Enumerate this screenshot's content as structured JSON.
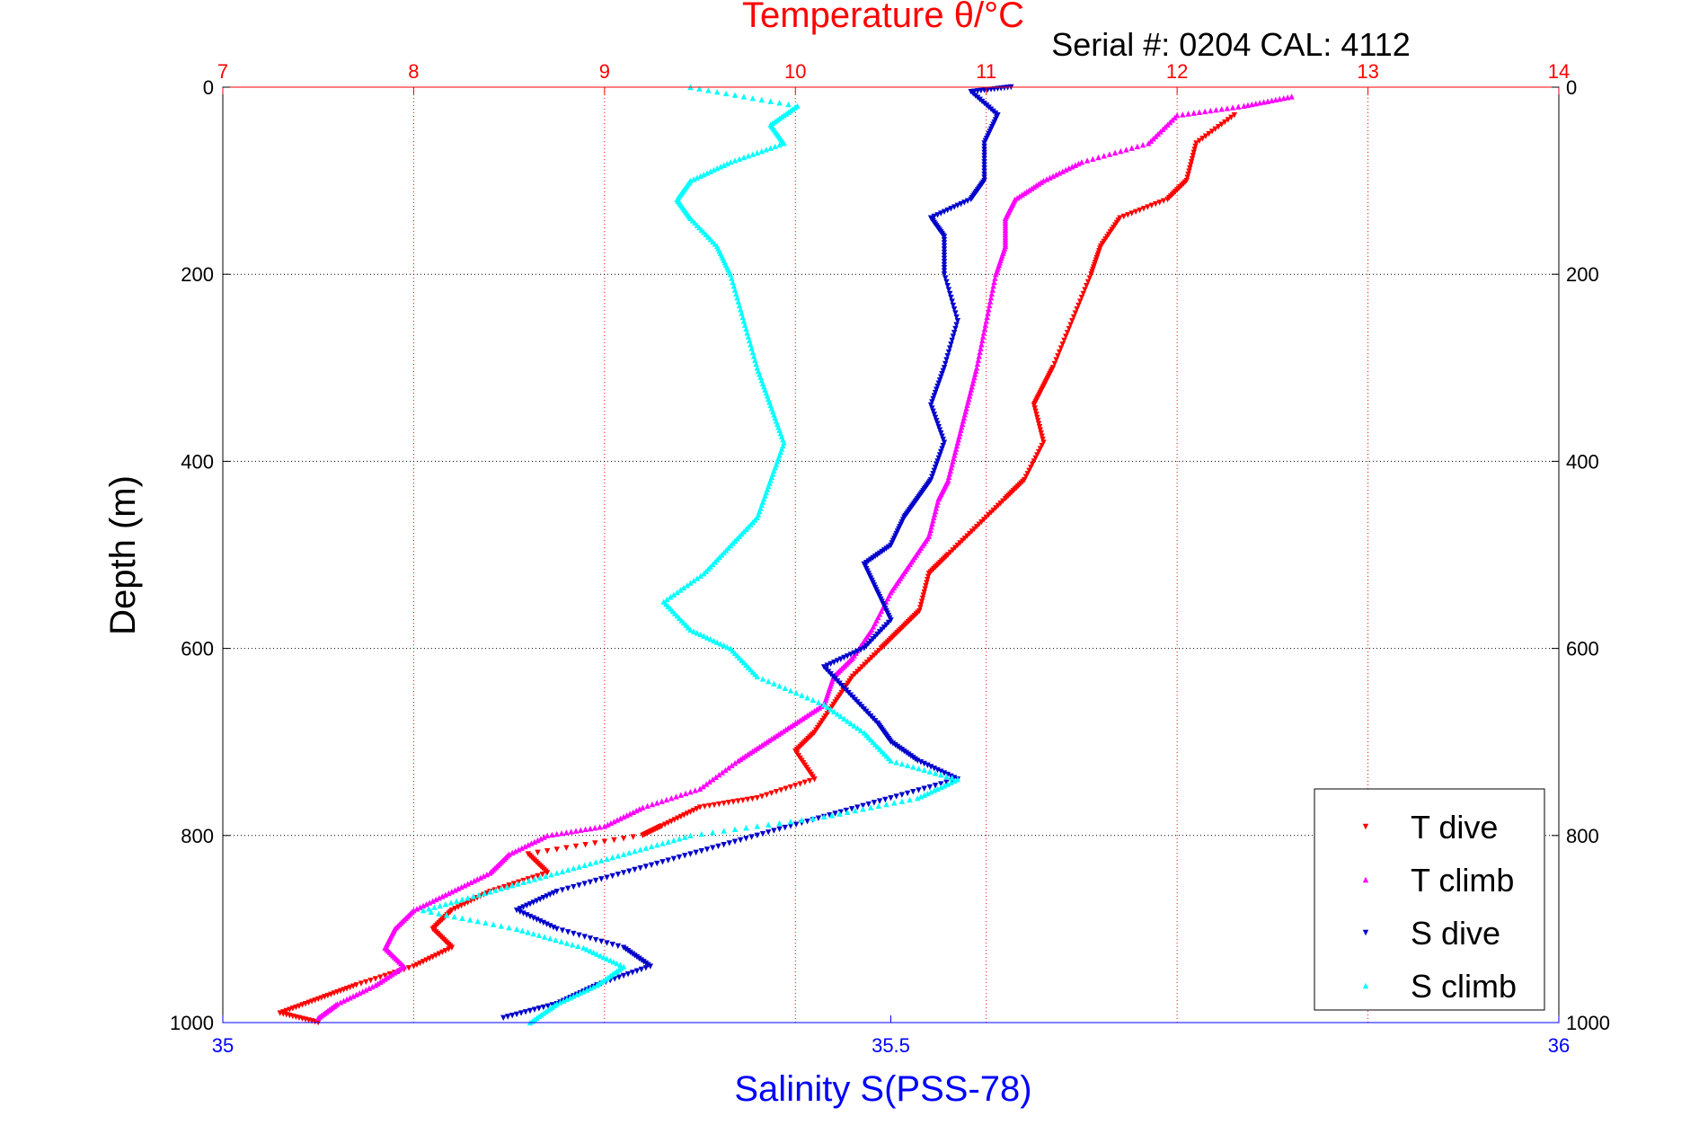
{
  "chart_data": {
    "type": "scatter",
    "title": "Temperature θ/°C",
    "subtitle": "Serial #: 0204  CAL: 4112",
    "ylabel": "Depth (m)",
    "xlabel": "Salinity S(PSS-78)",
    "top_axis": {
      "range": [
        7,
        14
      ],
      "ticks": [
        "7",
        "8",
        "9",
        "10",
        "11",
        "12",
        "13",
        "14"
      ]
    },
    "bottom_axis": {
      "range": [
        35,
        36
      ],
      "ticks": [
        {
          "v": 35,
          "label": "35"
        },
        {
          "v": 35.5,
          "label": "35.5"
        },
        {
          "v": 36,
          "label": "36"
        }
      ]
    },
    "y_axis": {
      "range": [
        0,
        1000
      ],
      "reversed": true,
      "ticks": [
        "0",
        "200",
        "400",
        "600",
        "800",
        "1000"
      ]
    },
    "grid": true,
    "legend_position": "bottom-right",
    "colors": {
      "title": "#ff0000",
      "xlabel": "#0000ff",
      "t_dive": "#ff0000",
      "t_climb": "#ff00ff",
      "s_dive": "#0000cc",
      "s_climb": "#00ffff"
    },
    "series": [
      {
        "name": "T dive",
        "axis": "temperature",
        "marker": "triangle-down",
        "points": [
          [
            12.3,
            30
          ],
          [
            12.1,
            60
          ],
          [
            12.05,
            100
          ],
          [
            11.95,
            120
          ],
          [
            11.7,
            140
          ],
          [
            11.6,
            170
          ],
          [
            11.55,
            200
          ],
          [
            11.45,
            250
          ],
          [
            11.35,
            300
          ],
          [
            11.3,
            320
          ],
          [
            11.25,
            340
          ],
          [
            11.3,
            380
          ],
          [
            11.2,
            420
          ],
          [
            11.1,
            440
          ],
          [
            10.95,
            470
          ],
          [
            10.8,
            500
          ],
          [
            10.7,
            520
          ],
          [
            10.65,
            560
          ],
          [
            10.55,
            580
          ],
          [
            10.45,
            600
          ],
          [
            10.3,
            630
          ],
          [
            10.2,
            660
          ],
          [
            10.1,
            690
          ],
          [
            10.0,
            710
          ],
          [
            10.1,
            740
          ],
          [
            9.8,
            760
          ],
          [
            9.5,
            770
          ],
          [
            9.3,
            790
          ],
          [
            9.2,
            800
          ],
          [
            8.6,
            820
          ],
          [
            8.7,
            840
          ],
          [
            8.4,
            860
          ],
          [
            8.2,
            880
          ],
          [
            8.1,
            900
          ],
          [
            8.2,
            920
          ],
          [
            8.0,
            940
          ],
          [
            7.7,
            960
          ],
          [
            7.5,
            975
          ],
          [
            7.3,
            990
          ],
          [
            7.5,
            1000
          ]
        ]
      },
      {
        "name": "T climb",
        "axis": "temperature",
        "marker": "triangle-up",
        "points": [
          [
            12.6,
            10
          ],
          [
            12.35,
            20
          ],
          [
            12.0,
            30
          ],
          [
            11.85,
            60
          ],
          [
            11.5,
            80
          ],
          [
            11.3,
            100
          ],
          [
            11.15,
            120
          ],
          [
            11.1,
            140
          ],
          [
            11.1,
            170
          ],
          [
            11.05,
            200
          ],
          [
            11.0,
            250
          ],
          [
            10.95,
            300
          ],
          [
            10.9,
            340
          ],
          [
            10.85,
            380
          ],
          [
            10.8,
            420
          ],
          [
            10.75,
            440
          ],
          [
            10.7,
            480
          ],
          [
            10.6,
            510
          ],
          [
            10.5,
            540
          ],
          [
            10.4,
            580
          ],
          [
            10.3,
            610
          ],
          [
            10.2,
            630
          ],
          [
            10.15,
            660
          ],
          [
            10.0,
            680
          ],
          [
            9.85,
            700
          ],
          [
            9.7,
            720
          ],
          [
            9.5,
            750
          ],
          [
            9.2,
            770
          ],
          [
            9.0,
            790
          ],
          [
            8.7,
            800
          ],
          [
            8.5,
            820
          ],
          [
            8.4,
            840
          ],
          [
            8.2,
            860
          ],
          [
            8.0,
            880
          ],
          [
            7.9,
            900
          ],
          [
            7.85,
            920
          ],
          [
            7.95,
            940
          ],
          [
            7.8,
            960
          ],
          [
            7.6,
            980
          ],
          [
            7.5,
            995
          ]
        ]
      },
      {
        "name": "S dive",
        "axis": "salinity",
        "marker": "triangle-down",
        "points": [
          [
            35.59,
            0
          ],
          [
            35.56,
            5
          ],
          [
            35.58,
            30
          ],
          [
            35.57,
            60
          ],
          [
            35.57,
            100
          ],
          [
            35.56,
            120
          ],
          [
            35.53,
            140
          ],
          [
            35.54,
            160
          ],
          [
            35.54,
            200
          ],
          [
            35.55,
            250
          ],
          [
            35.54,
            300
          ],
          [
            35.53,
            340
          ],
          [
            35.54,
            380
          ],
          [
            35.53,
            420
          ],
          [
            35.52,
            440
          ],
          [
            35.51,
            460
          ],
          [
            35.5,
            490
          ],
          [
            35.48,
            510
          ],
          [
            35.49,
            540
          ],
          [
            35.5,
            570
          ],
          [
            35.48,
            600
          ],
          [
            35.45,
            620
          ],
          [
            35.47,
            650
          ],
          [
            35.49,
            680
          ],
          [
            35.5,
            700
          ],
          [
            35.52,
            720
          ],
          [
            35.55,
            740
          ],
          [
            35.5,
            760
          ],
          [
            35.45,
            780
          ],
          [
            35.4,
            800
          ],
          [
            35.35,
            820
          ],
          [
            35.3,
            840
          ],
          [
            35.25,
            860
          ],
          [
            35.22,
            880
          ],
          [
            35.25,
            900
          ],
          [
            35.3,
            920
          ],
          [
            35.32,
            940
          ],
          [
            35.28,
            960
          ],
          [
            35.25,
            980
          ],
          [
            35.21,
            995
          ]
        ]
      },
      {
        "name": "S climb",
        "axis": "salinity",
        "marker": "triangle-up",
        "points": [
          [
            35.35,
            0
          ],
          [
            35.43,
            20
          ],
          [
            35.41,
            40
          ],
          [
            35.42,
            60
          ],
          [
            35.38,
            80
          ],
          [
            35.35,
            100
          ],
          [
            35.34,
            120
          ],
          [
            35.35,
            140
          ],
          [
            35.37,
            170
          ],
          [
            35.38,
            200
          ],
          [
            35.39,
            250
          ],
          [
            35.4,
            300
          ],
          [
            35.41,
            340
          ],
          [
            35.42,
            380
          ],
          [
            35.41,
            420
          ],
          [
            35.4,
            460
          ],
          [
            35.38,
            490
          ],
          [
            35.36,
            520
          ],
          [
            35.33,
            550
          ],
          [
            35.35,
            580
          ],
          [
            35.38,
            600
          ],
          [
            35.4,
            630
          ],
          [
            35.45,
            660
          ],
          [
            35.48,
            690
          ],
          [
            35.5,
            720
          ],
          [
            35.55,
            740
          ],
          [
            35.52,
            760
          ],
          [
            35.45,
            780
          ],
          [
            35.35,
            800
          ],
          [
            35.3,
            820
          ],
          [
            35.25,
            840
          ],
          [
            35.2,
            860
          ],
          [
            35.15,
            880
          ],
          [
            35.22,
            900
          ],
          [
            35.27,
            920
          ],
          [
            35.3,
            940
          ],
          [
            35.28,
            960
          ],
          [
            35.25,
            980
          ],
          [
            35.23,
            1000
          ]
        ]
      }
    ]
  }
}
